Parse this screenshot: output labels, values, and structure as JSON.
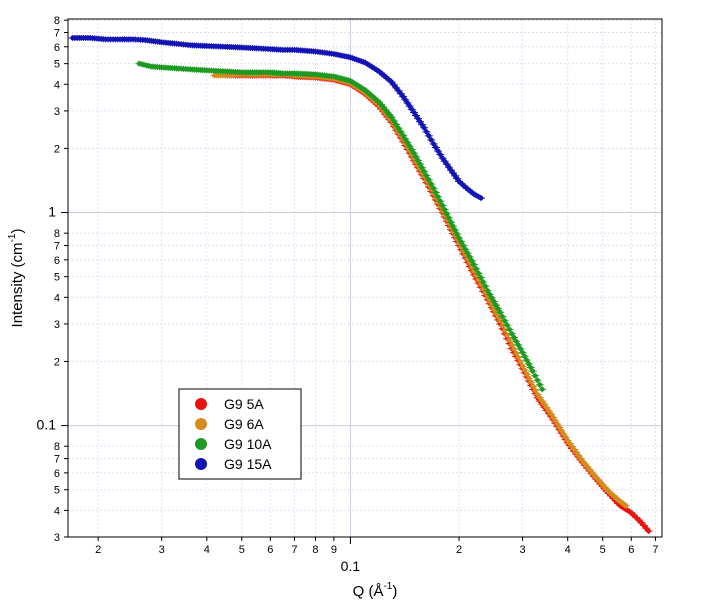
{
  "chart_data": {
    "type": "scatter",
    "xlabel": "Q (Å",
    "xlabel_sup": "-1",
    "xlabel_end": ")",
    "ylabel": "Intensity (cm",
    "ylabel_sup": "-1",
    "ylabel_end": ")",
    "x_scale": "log",
    "y_scale": "log",
    "xlim": [
      0.0165,
      0.73
    ],
    "ylim": [
      0.03,
      8.1
    ],
    "grid": true,
    "legend_position": "lower-left",
    "x_major_ticks": [
      {
        "value": 0.1,
        "label": "0.1"
      }
    ],
    "x_minor_ticks": [
      {
        "value": 0.02,
        "label": "2"
      },
      {
        "value": 0.03,
        "label": "3"
      },
      {
        "value": 0.04,
        "label": "4"
      },
      {
        "value": 0.05,
        "label": "5"
      },
      {
        "value": 0.06,
        "label": "6"
      },
      {
        "value": 0.07,
        "label": "7"
      },
      {
        "value": 0.08,
        "label": "8"
      },
      {
        "value": 0.09,
        "label": "9"
      },
      {
        "value": 0.2,
        "label": "2"
      },
      {
        "value": 0.3,
        "label": "3"
      },
      {
        "value": 0.4,
        "label": "4"
      },
      {
        "value": 0.5,
        "label": "5"
      },
      {
        "value": 0.6,
        "label": "6"
      },
      {
        "value": 0.7,
        "label": "7"
      }
    ],
    "y_major_ticks": [
      {
        "value": 0.1,
        "label": "0.1"
      },
      {
        "value": 1,
        "label": "1"
      }
    ],
    "y_minor_ticks": [
      {
        "value": 0.03,
        "label": "3"
      },
      {
        "value": 0.04,
        "label": "4"
      },
      {
        "value": 0.05,
        "label": "5"
      },
      {
        "value": 0.06,
        "label": "6"
      },
      {
        "value": 0.07,
        "label": "7"
      },
      {
        "value": 0.08,
        "label": "8"
      },
      {
        "value": 0.2,
        "label": "2"
      },
      {
        "value": 0.3,
        "label": "3"
      },
      {
        "value": 0.4,
        "label": "4"
      },
      {
        "value": 0.5,
        "label": "5"
      },
      {
        "value": 0.6,
        "label": "6"
      },
      {
        "value": 0.7,
        "label": "7"
      },
      {
        "value": 0.8,
        "label": "8"
      },
      {
        "value": 2,
        "label": "2"
      },
      {
        "value": 3,
        "label": "3"
      },
      {
        "value": 4,
        "label": "4"
      },
      {
        "value": 5,
        "label": "5"
      },
      {
        "value": 6,
        "label": "6"
      },
      {
        "value": 7,
        "label": "7"
      },
      {
        "value": 8,
        "label": "8"
      }
    ],
    "series": [
      {
        "name": "G9 5A",
        "color": "#e8140f",
        "x": [
          0.045,
          0.05,
          0.055,
          0.06,
          0.065,
          0.07,
          0.08,
          0.09,
          0.1,
          0.11,
          0.12,
          0.13,
          0.14,
          0.15,
          0.16,
          0.17,
          0.18,
          0.19,
          0.2,
          0.22,
          0.24,
          0.26,
          0.28,
          0.3,
          0.33,
          0.36,
          0.4,
          0.44,
          0.48,
          0.52,
          0.56,
          0.6,
          0.63,
          0.65,
          0.67
        ],
        "y": [
          4.4,
          4.4,
          4.4,
          4.4,
          4.4,
          4.35,
          4.3,
          4.2,
          4.0,
          3.6,
          3.15,
          2.65,
          2.15,
          1.75,
          1.45,
          1.2,
          1.0,
          0.83,
          0.7,
          0.51,
          0.39,
          0.3,
          0.23,
          0.185,
          0.135,
          0.11,
          0.083,
          0.067,
          0.056,
          0.048,
          0.042,
          0.039,
          0.036,
          0.034,
          0.032
        ]
      },
      {
        "name": "G9 6A",
        "color": "#d48c1e",
        "x": [
          0.042,
          0.045,
          0.05,
          0.055,
          0.06,
          0.065,
          0.07,
          0.08,
          0.09,
          0.1,
          0.11,
          0.12,
          0.13,
          0.14,
          0.15,
          0.16,
          0.17,
          0.18,
          0.19,
          0.2,
          0.22,
          0.24,
          0.26,
          0.28,
          0.3,
          0.33,
          0.36,
          0.4,
          0.44,
          0.48,
          0.52,
          0.55,
          0.58
        ],
        "y": [
          4.4,
          4.4,
          4.45,
          4.45,
          4.45,
          4.45,
          4.4,
          4.35,
          4.25,
          4.05,
          3.65,
          3.2,
          2.7,
          2.2,
          1.8,
          1.48,
          1.23,
          1.02,
          0.85,
          0.72,
          0.53,
          0.4,
          0.31,
          0.24,
          0.19,
          0.14,
          0.113,
          0.085,
          0.068,
          0.057,
          0.049,
          0.045,
          0.042
        ]
      },
      {
        "name": "G9 10A",
        "color": "#1e9a22",
        "x": [
          0.026,
          0.028,
          0.03,
          0.033,
          0.036,
          0.04,
          0.045,
          0.05,
          0.055,
          0.06,
          0.065,
          0.07,
          0.08,
          0.09,
          0.1,
          0.11,
          0.12,
          0.13,
          0.14,
          0.15,
          0.16,
          0.17,
          0.18,
          0.19,
          0.2,
          0.22,
          0.24,
          0.26,
          0.28,
          0.3,
          0.32,
          0.34
        ],
        "y": [
          5.0,
          4.85,
          4.8,
          4.75,
          4.7,
          4.65,
          4.6,
          4.55,
          4.55,
          4.55,
          4.5,
          4.5,
          4.45,
          4.35,
          4.15,
          3.75,
          3.3,
          2.8,
          2.3,
          1.9,
          1.56,
          1.3,
          1.08,
          0.9,
          0.76,
          0.57,
          0.43,
          0.34,
          0.27,
          0.22,
          0.18,
          0.148
        ]
      },
      {
        "name": "G9 15A",
        "color": "#1414b4",
        "x": [
          0.017,
          0.019,
          0.021,
          0.023,
          0.025,
          0.027,
          0.03,
          0.033,
          0.036,
          0.04,
          0.045,
          0.05,
          0.055,
          0.06,
          0.065,
          0.07,
          0.08,
          0.09,
          0.1,
          0.11,
          0.12,
          0.13,
          0.14,
          0.15,
          0.16,
          0.17,
          0.18,
          0.19,
          0.2,
          0.21,
          0.22,
          0.23
        ],
        "y": [
          6.6,
          6.6,
          6.5,
          6.5,
          6.5,
          6.45,
          6.3,
          6.2,
          6.1,
          6.05,
          6.0,
          5.95,
          5.9,
          5.85,
          5.8,
          5.8,
          5.7,
          5.55,
          5.35,
          5.05,
          4.6,
          4.1,
          3.5,
          2.95,
          2.5,
          2.1,
          1.8,
          1.58,
          1.4,
          1.3,
          1.22,
          1.17
        ]
      }
    ]
  }
}
